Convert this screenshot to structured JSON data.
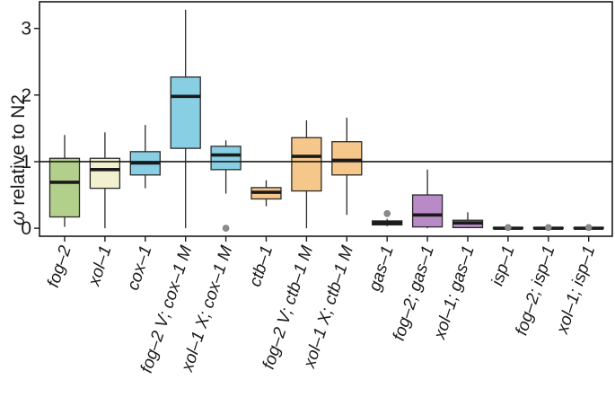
{
  "chart_data": {
    "type": "boxplot",
    "title": "",
    "xlabel": "",
    "ylabel_symbol": "ω",
    "ylabel": " relative to N2",
    "ylim": [
      -0.12,
      3.4
    ],
    "yticks": [
      0,
      1,
      2,
      3
    ],
    "reference_line": 1,
    "categories": [
      "fog–2",
      "xol–1",
      "cox–1",
      "fog–2 V; cox–1 M",
      "xol–1 X; cox–1 M",
      "ctb–1",
      "fog–2 V; ctb–1 M",
      "xol–1 X; ctb–1 M",
      "gas–1",
      "fog–2; gas–1",
      "xol–1; gas–1",
      "isp–1",
      "fog–2; isp–1",
      "xol–1; isp–1"
    ],
    "boxes": [
      {
        "color": "#b3cf8c",
        "whisker_low": 0.02,
        "q1": 0.17,
        "median": 0.69,
        "q3": 1.05,
        "whisker_high": 1.4,
        "outliers": []
      },
      {
        "color": "#f2f0cf",
        "whisker_low": 0.0,
        "q1": 0.6,
        "median": 0.88,
        "q3": 1.05,
        "whisker_high": 1.44,
        "outliers": []
      },
      {
        "color": "#88cfe4",
        "whisker_low": 0.6,
        "q1": 0.8,
        "median": 0.98,
        "q3": 1.15,
        "whisker_high": 1.55,
        "outliers": []
      },
      {
        "color": "#88cfe4",
        "whisker_low": 0.0,
        "q1": 1.2,
        "median": 1.98,
        "q3": 2.27,
        "whisker_high": 3.28,
        "outliers": []
      },
      {
        "color": "#88cfe4",
        "whisker_low": 0.52,
        "q1": 0.88,
        "median": 1.1,
        "q3": 1.23,
        "whisker_high": 1.32,
        "outliers": [
          0.0
        ]
      },
      {
        "color": "#f6c78a",
        "whisker_low": 0.33,
        "q1": 0.44,
        "median": 0.54,
        "q3": 0.61,
        "whisker_high": 0.72,
        "outliers": []
      },
      {
        "color": "#f6c78a",
        "whisker_low": 0.0,
        "q1": 0.56,
        "median": 1.08,
        "q3": 1.36,
        "whisker_high": 1.62,
        "outliers": []
      },
      {
        "color": "#f6c78a",
        "whisker_low": 0.2,
        "q1": 0.8,
        "median": 1.02,
        "q3": 1.3,
        "whisker_high": 1.66,
        "outliers": []
      },
      {
        "color": "#b98ac8",
        "whisker_low": 0.03,
        "q1": 0.05,
        "median": 0.08,
        "q3": 0.11,
        "whisker_high": 0.14,
        "outliers": [
          0.22
        ]
      },
      {
        "color": "#b98ac8",
        "whisker_low": 0.0,
        "q1": 0.02,
        "median": 0.2,
        "q3": 0.5,
        "whisker_high": 0.88,
        "outliers": []
      },
      {
        "color": "#b98ac8",
        "whisker_low": 0.0,
        "q1": 0.01,
        "median": 0.08,
        "q3": 0.12,
        "whisker_high": 0.24,
        "outliers": []
      },
      {
        "color": "#b98ac8",
        "whisker_low": 0.0,
        "q1": 0.0,
        "median": 0.0,
        "q3": 0.01,
        "whisker_high": 0.01,
        "outliers": [
          0.01
        ]
      },
      {
        "color": "#b98ac8",
        "whisker_low": 0.0,
        "q1": 0.0,
        "median": 0.0,
        "q3": 0.01,
        "whisker_high": 0.01,
        "outliers": [
          0.01
        ]
      },
      {
        "color": "#b98ac8",
        "whisker_low": 0.0,
        "q1": 0.0,
        "median": 0.0,
        "q3": 0.01,
        "whisker_high": 0.01,
        "outliers": [
          0.01
        ]
      }
    ]
  }
}
